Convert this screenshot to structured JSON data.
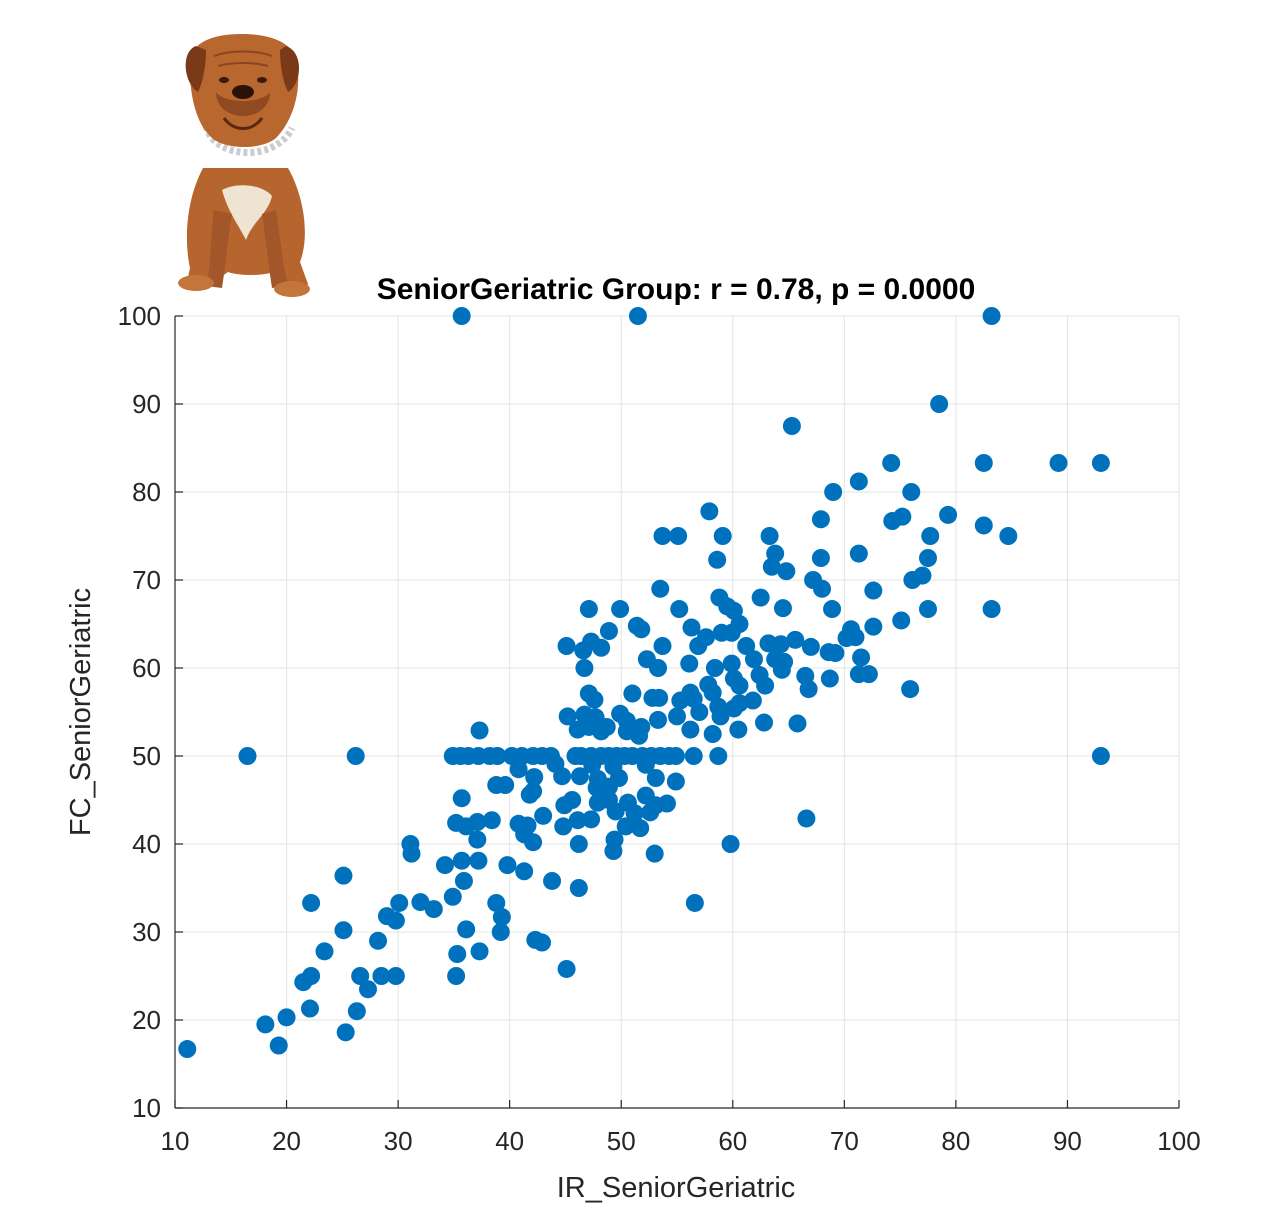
{
  "chart_data": {
    "type": "scatter",
    "title": "SeniorGeriatric Group: r = 0.78, p = 0.0000",
    "xlabel": "IR_SeniorGeriatric",
    "ylabel": "FC_SeniorGeriatric",
    "xlim": [
      10,
      100
    ],
    "ylim": [
      10,
      100
    ],
    "xticks": [
      10,
      20,
      30,
      40,
      50,
      60,
      70,
      80,
      90,
      100
    ],
    "yticks": [
      10,
      20,
      30,
      40,
      50,
      60,
      70,
      80,
      90,
      100
    ],
    "grid": true,
    "marker_color": "#0072BD",
    "illustration": "dog-icon",
    "points": [
      [
        35.7,
        100
      ],
      [
        51.5,
        100
      ],
      [
        83.2,
        100
      ],
      [
        78.5,
        90
      ],
      [
        65.3,
        87.5
      ],
      [
        74.2,
        83.3
      ],
      [
        82.5,
        83.3
      ],
      [
        89.2,
        83.3
      ],
      [
        93.0,
        83.3
      ],
      [
        71.3,
        81.2
      ],
      [
        69,
        80
      ],
      [
        76,
        80
      ],
      [
        57.9,
        77.8
      ],
      [
        79.3,
        77.4
      ],
      [
        75.2,
        77.2
      ],
      [
        74.3,
        76.7
      ],
      [
        67.9,
        76.9
      ],
      [
        82.5,
        76.2
      ],
      [
        53.7,
        75
      ],
      [
        55.1,
        75
      ],
      [
        59.1,
        75
      ],
      [
        63.3,
        75
      ],
      [
        77.7,
        75
      ],
      [
        84.7,
        75
      ],
      [
        63.8,
        73
      ],
      [
        67.9,
        72.5
      ],
      [
        71.3,
        73
      ],
      [
        77.5,
        72.5
      ],
      [
        58.6,
        72.3
      ],
      [
        63.5,
        71.5
      ],
      [
        64.8,
        71
      ],
      [
        67.2,
        70
      ],
      [
        68,
        69
      ],
      [
        76.1,
        70
      ],
      [
        77,
        70.5
      ],
      [
        53.5,
        69
      ],
      [
        72.6,
        68.8
      ],
      [
        47.1,
        66.7
      ],
      [
        49.9,
        66.7
      ],
      [
        55.2,
        66.7
      ],
      [
        58.8,
        68
      ],
      [
        59.5,
        67
      ],
      [
        60.1,
        66.5
      ],
      [
        64.5,
        66.8
      ],
      [
        68.9,
        66.7
      ],
      [
        77.5,
        66.7
      ],
      [
        83.2,
        66.7
      ],
      [
        60.6,
        65
      ],
      [
        62.5,
        68
      ],
      [
        70.6,
        64.4
      ],
      [
        72.6,
        64.7
      ],
      [
        75.1,
        65.4
      ],
      [
        56.3,
        64.6
      ],
      [
        51.4,
        64.8
      ],
      [
        51.8,
        64.4
      ],
      [
        48.9,
        64.2
      ],
      [
        59,
        64
      ],
      [
        59.9,
        64
      ],
      [
        57.6,
        63.5
      ],
      [
        65.6,
        63.2
      ],
      [
        70.2,
        63.4
      ],
      [
        71,
        63.5
      ],
      [
        45.1,
        62.5
      ],
      [
        47.3,
        63
      ],
      [
        48.2,
        62.3
      ],
      [
        53.7,
        62.5
      ],
      [
        56.9,
        62.5
      ],
      [
        61.2,
        62.5
      ],
      [
        63.2,
        62.8
      ],
      [
        64.3,
        62.7
      ],
      [
        67,
        62.4
      ],
      [
        69.2,
        61.7
      ],
      [
        46.6,
        62
      ],
      [
        52.3,
        61
      ],
      [
        56.1,
        60.5
      ],
      [
        59.9,
        60.5
      ],
      [
        61.9,
        61
      ],
      [
        63.8,
        61
      ],
      [
        64.6,
        60.7
      ],
      [
        68.6,
        61.8
      ],
      [
        71.5,
        61.2
      ],
      [
        46.7,
        60
      ],
      [
        53.3,
        60
      ],
      [
        58.4,
        60
      ],
      [
        60.1,
        58.8
      ],
      [
        62.4,
        59.2
      ],
      [
        64.4,
        59.8
      ],
      [
        66.5,
        59.1
      ],
      [
        71.3,
        59.3
      ],
      [
        72.2,
        59.3
      ],
      [
        68.7,
        58.8
      ],
      [
        57.8,
        58.1
      ],
      [
        60.6,
        58
      ],
      [
        62.9,
        58
      ],
      [
        56.2,
        57.2
      ],
      [
        56.5,
        56.5
      ],
      [
        58.2,
        57.2
      ],
      [
        66.8,
        57.6
      ],
      [
        75.9,
        57.6
      ],
      [
        47.1,
        57.1
      ],
      [
        51,
        57.1
      ],
      [
        52.8,
        56.6
      ],
      [
        53.4,
        56.6
      ],
      [
        55.3,
        56.3
      ],
      [
        60.6,
        56
      ],
      [
        61.8,
        56.3
      ],
      [
        58.7,
        55.6
      ],
      [
        47.6,
        56.4
      ],
      [
        57,
        55
      ],
      [
        55,
        54.5
      ],
      [
        58.9,
        54.5
      ],
      [
        60.1,
        55.4
      ],
      [
        45.2,
        54.5
      ],
      [
        46.7,
        54.7
      ],
      [
        47.7,
        54.4
      ],
      [
        49.9,
        54.8
      ],
      [
        50.5,
        54
      ],
      [
        53.3,
        54.1
      ],
      [
        48.7,
        53.3
      ],
      [
        51.8,
        53.3
      ],
      [
        62.8,
        53.8
      ],
      [
        65.8,
        53.7
      ],
      [
        47.1,
        53.3
      ],
      [
        37.3,
        52.9
      ],
      [
        46.1,
        53
      ],
      [
        48.2,
        52.8
      ],
      [
        50.5,
        52.8
      ],
      [
        51.6,
        52.3
      ],
      [
        56.2,
        53
      ],
      [
        58.2,
        52.5
      ],
      [
        60.5,
        53
      ],
      [
        16.5,
        50
      ],
      [
        26.2,
        50
      ],
      [
        34.9,
        50
      ],
      [
        35.6,
        50
      ],
      [
        36.3,
        50
      ],
      [
        37.2,
        50
      ],
      [
        38.2,
        50
      ],
      [
        38.9,
        50
      ],
      [
        40.2,
        50
      ],
      [
        41.1,
        50
      ],
      [
        42.1,
        50
      ],
      [
        42.9,
        50
      ],
      [
        43.7,
        50
      ],
      [
        45.9,
        50
      ],
      [
        46.4,
        50
      ],
      [
        47.3,
        50
      ],
      [
        48.2,
        50
      ],
      [
        48.9,
        50
      ],
      [
        49.6,
        50
      ],
      [
        50.3,
        50
      ],
      [
        51,
        50
      ],
      [
        51.9,
        50
      ],
      [
        52.7,
        50
      ],
      [
        53.5,
        50
      ],
      [
        54.3,
        50
      ],
      [
        54.9,
        50
      ],
      [
        56.5,
        50
      ],
      [
        58.7,
        50
      ],
      [
        93,
        50
      ],
      [
        40.8,
        48.5
      ],
      [
        44.1,
        49.1
      ],
      [
        47.4,
        49
      ],
      [
        49.3,
        48.8
      ],
      [
        52.2,
        49
      ],
      [
        42.2,
        47.6
      ],
      [
        44.7,
        47.7
      ],
      [
        46.3,
        47.7
      ],
      [
        47.9,
        47.4
      ],
      [
        49.8,
        47.5
      ],
      [
        53.1,
        47.5
      ],
      [
        54.9,
        47.1
      ],
      [
        47.8,
        46.4
      ],
      [
        48.9,
        46.5
      ],
      [
        38.8,
        46.7
      ],
      [
        39.6,
        46.7
      ],
      [
        42.1,
        46
      ],
      [
        41.8,
        45.6
      ],
      [
        45.6,
        45
      ],
      [
        48.9,
        45
      ],
      [
        52.2,
        45.5
      ],
      [
        53.1,
        44.4
      ],
      [
        54.1,
        44.6
      ],
      [
        35.7,
        45.2
      ],
      [
        44.9,
        44.4
      ],
      [
        47.9,
        44.7
      ],
      [
        49.5,
        43.7
      ],
      [
        50.6,
        44.7
      ],
      [
        51.2,
        43.5
      ],
      [
        52.6,
        43.6
      ],
      [
        35.2,
        42.4
      ],
      [
        36.1,
        42
      ],
      [
        37.1,
        42.5
      ],
      [
        38.4,
        42.7
      ],
      [
        40.8,
        42.3
      ],
      [
        41.6,
        42.1
      ],
      [
        43,
        43.2
      ],
      [
        44.8,
        42
      ],
      [
        46.1,
        42.7
      ],
      [
        47.3,
        42.8
      ],
      [
        50.4,
        42
      ],
      [
        51.7,
        41.8
      ],
      [
        66.6,
        42.9
      ],
      [
        37.1,
        40.5
      ],
      [
        41.3,
        41.1
      ],
      [
        42.1,
        40.2
      ],
      [
        46.2,
        40
      ],
      [
        49.4,
        40.5
      ],
      [
        49.3,
        39.2
      ],
      [
        53,
        38.9
      ],
      [
        59.8,
        40
      ],
      [
        31.1,
        40
      ],
      [
        31.2,
        38.9
      ],
      [
        34.2,
        37.6
      ],
      [
        35.7,
        38.1
      ],
      [
        37.2,
        38.1
      ],
      [
        39.8,
        37.6
      ],
      [
        41.3,
        36.9
      ],
      [
        35.9,
        35.8
      ],
      [
        43.8,
        35.8
      ],
      [
        46.2,
        35
      ],
      [
        25.1,
        36.4
      ],
      [
        30.1,
        33.3
      ],
      [
        32,
        33.4
      ],
      [
        33.2,
        32.6
      ],
      [
        34.9,
        34
      ],
      [
        22.2,
        33.3
      ],
      [
        38.8,
        33.3
      ],
      [
        56.6,
        33.3
      ],
      [
        29,
        31.8
      ],
      [
        29.8,
        31.3
      ],
      [
        39.3,
        31.7
      ],
      [
        39.2,
        30
      ],
      [
        25.1,
        30.2
      ],
      [
        36.1,
        30.3
      ],
      [
        28.2,
        29
      ],
      [
        42.3,
        29.1
      ],
      [
        42.9,
        28.8
      ],
      [
        23.4,
        27.8
      ],
      [
        35.3,
        27.5
      ],
      [
        37.3,
        27.8
      ],
      [
        45.1,
        25.8
      ],
      [
        21.5,
        24.3
      ],
      [
        22.2,
        25
      ],
      [
        26.6,
        25
      ],
      [
        28.5,
        25
      ],
      [
        29.8,
        25
      ],
      [
        35.2,
        25
      ],
      [
        27.3,
        23.5
      ],
      [
        22.1,
        21.3
      ],
      [
        26.3,
        21
      ],
      [
        18.1,
        19.5
      ],
      [
        20,
        20.3
      ],
      [
        25.3,
        18.6
      ],
      [
        19.3,
        17.1
      ],
      [
        11.1,
        16.7
      ]
    ]
  }
}
